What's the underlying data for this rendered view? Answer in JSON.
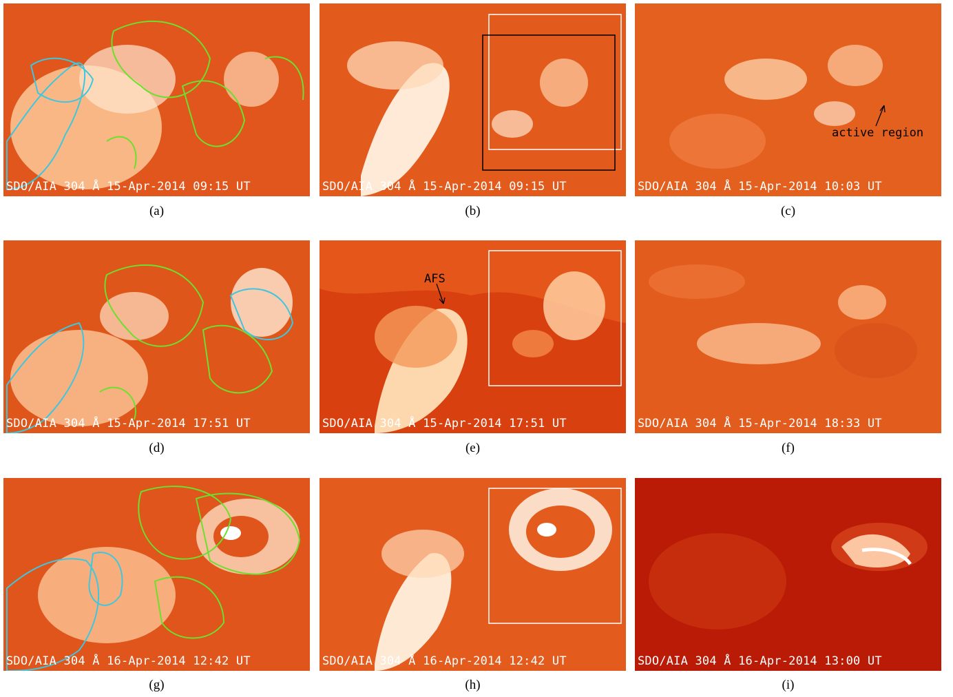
{
  "colors": {
    "base_orange": "#e25a1c",
    "bright": "#fff4e6",
    "dark_red": "#c01c08",
    "contour_cyan": "#3fc6df",
    "contour_green": "#6ede2f"
  },
  "panels": [
    {
      "timestamp": "SDO/AIA 304 Å 15-Apr-2014 09:15 UT",
      "caption": "(a)",
      "contours": true,
      "boxes": 0
    },
    {
      "timestamp": "SDO/AIA 304 Å 15-Apr-2014 09:15 UT",
      "caption": "(b)",
      "contours": false,
      "boxes": 2
    },
    {
      "timestamp": "SDO/AIA 304 Å 15-Apr-2014 10:03 UT",
      "caption": "(c)",
      "contours": false,
      "boxes": 0
    },
    {
      "timestamp": "SDO/AIA 304 Å 15-Apr-2014 17:51 UT",
      "caption": "(d)",
      "contours": true,
      "boxes": 0
    },
    {
      "timestamp": "SDO/AIA 304 Å 15-Apr-2014 17:51 UT",
      "caption": "(e)",
      "contours": false,
      "boxes": 1
    },
    {
      "timestamp": "SDO/AIA 304 Å 15-Apr-2014 18:33 UT",
      "caption": "(f)",
      "contours": false,
      "boxes": 0
    },
    {
      "timestamp": "SDO/AIA 304 Å 16-Apr-2014 12:42 UT",
      "caption": "(g)",
      "contours": true,
      "boxes": 0
    },
    {
      "timestamp": "SDO/AIA 304 Å 16-Apr-2014 12:42 UT",
      "caption": "(h)",
      "contours": false,
      "boxes": 1
    },
    {
      "timestamp": "SDO/AIA 304 Å 16-Apr-2014 13:00 UT",
      "caption": "(i)",
      "contours": false,
      "boxes": 0
    }
  ],
  "annotations": {
    "active_region": "active region",
    "afs": "AFS"
  }
}
